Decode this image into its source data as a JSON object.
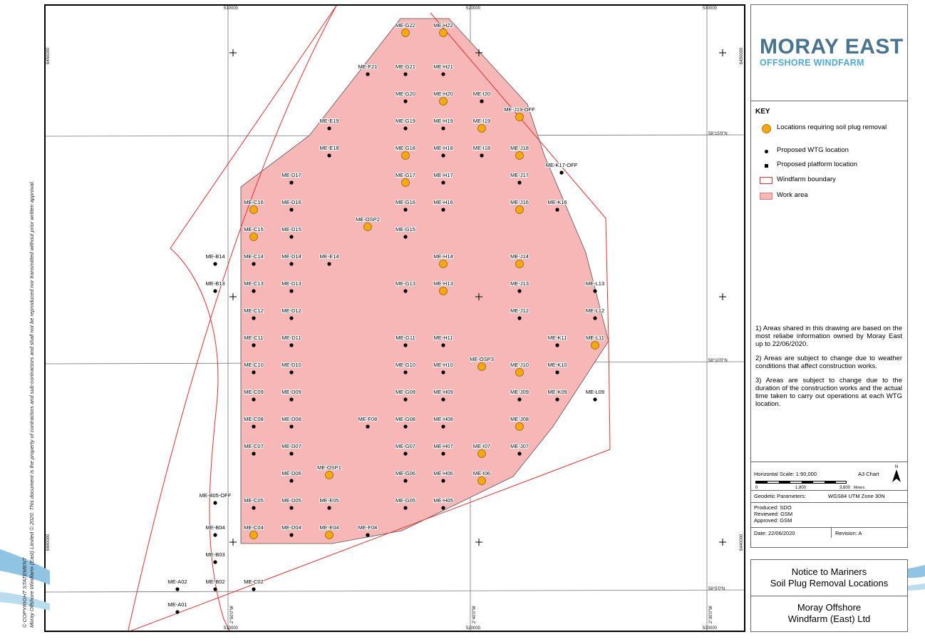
{
  "map": {
    "copyright_line1": "© COPYRIGHT STATEMENT",
    "copyright_line2": "Moray Offshore Windfarm (East) Limited © 2020. This document is the property of contractors and sub-contractors and shall not be reproduced nor transmitted without prior written approval.",
    "easting_labels": [
      "510000",
      "520000",
      "530000"
    ],
    "northing_labels": [
      "6450000",
      "6440000"
    ],
    "lat_labels": [
      "58°15'0\"N",
      "58°10'0\"N",
      "58°5'0\"N"
    ],
    "lon_labels": [
      "2°50'0\"W",
      "2°40'0\"W",
      "2°30'0\"W"
    ],
    "locations": [
      {
        "id": "ME-G22",
        "soil": true
      },
      {
        "id": "ME-H22",
        "soil": true
      },
      {
        "id": "ME-F21",
        "soil": false
      },
      {
        "id": "ME-G21",
        "soil": false
      },
      {
        "id": "ME-H21",
        "soil": false
      },
      {
        "id": "ME-G20",
        "soil": false
      },
      {
        "id": "ME-H20",
        "soil": true
      },
      {
        "id": "ME-I20",
        "soil": false
      },
      {
        "id": "ME-E19",
        "soil": false
      },
      {
        "id": "ME-G19",
        "soil": false
      },
      {
        "id": "ME-H19",
        "soil": false
      },
      {
        "id": "ME-I19",
        "soil": true
      },
      {
        "id": "ME-J19-OFF",
        "soil": true
      },
      {
        "id": "ME-E18",
        "soil": false
      },
      {
        "id": "ME-G18",
        "soil": true
      },
      {
        "id": "ME-H18",
        "soil": false
      },
      {
        "id": "ME-I18",
        "soil": false
      },
      {
        "id": "ME-J18",
        "soil": true
      },
      {
        "id": "ME-D17",
        "soil": false
      },
      {
        "id": "ME-G17",
        "soil": true
      },
      {
        "id": "ME-H17",
        "soil": false
      },
      {
        "id": "ME-J17",
        "soil": false
      },
      {
        "id": "ME-K17-OFF",
        "soil": false
      },
      {
        "id": "ME-C16",
        "soil": true
      },
      {
        "id": "ME-D16",
        "soil": false
      },
      {
        "id": "ME-G16",
        "soil": false
      },
      {
        "id": "ME-H16",
        "soil": false
      },
      {
        "id": "ME-J16",
        "soil": true
      },
      {
        "id": "ME-K16",
        "soil": false
      },
      {
        "id": "ME-C15",
        "soil": true
      },
      {
        "id": "ME-D15",
        "soil": false
      },
      {
        "id": "ME-OSP2",
        "soil": true
      },
      {
        "id": "ME-G15",
        "soil": false
      },
      {
        "id": "ME-B14",
        "soil": false
      },
      {
        "id": "ME-C14",
        "soil": false
      },
      {
        "id": "ME-D14",
        "soil": false
      },
      {
        "id": "ME-E14",
        "soil": false
      },
      {
        "id": "ME-H14",
        "soil": true
      },
      {
        "id": "ME-J14",
        "soil": true
      },
      {
        "id": "ME-B13",
        "soil": false
      },
      {
        "id": "ME-C13",
        "soil": false
      },
      {
        "id": "ME-D13",
        "soil": false
      },
      {
        "id": "ME-G13",
        "soil": false
      },
      {
        "id": "ME-H13",
        "soil": true
      },
      {
        "id": "ME-J13",
        "soil": false
      },
      {
        "id": "ME-L13",
        "soil": false
      },
      {
        "id": "ME-C12",
        "soil": false
      },
      {
        "id": "ME-D12",
        "soil": false
      },
      {
        "id": "ME-J12",
        "soil": false
      },
      {
        "id": "ME-L12",
        "soil": false
      },
      {
        "id": "ME-C11",
        "soil": false
      },
      {
        "id": "ME-D11",
        "soil": false
      },
      {
        "id": "ME-G11",
        "soil": false
      },
      {
        "id": "ME-H11",
        "soil": false
      },
      {
        "id": "ME-K11",
        "soil": false
      },
      {
        "id": "ME-L11",
        "soil": true
      },
      {
        "id": "ME-C10",
        "soil": false
      },
      {
        "id": "ME-D10",
        "soil": false
      },
      {
        "id": "ME-G10",
        "soil": false
      },
      {
        "id": "ME-H10",
        "soil": false
      },
      {
        "id": "ME-OSP3",
        "soil": true
      },
      {
        "id": "ME-J10",
        "soil": true
      },
      {
        "id": "ME-K10",
        "soil": false
      },
      {
        "id": "ME-C09",
        "soil": false
      },
      {
        "id": "ME-D09",
        "soil": false
      },
      {
        "id": "ME-G09",
        "soil": false
      },
      {
        "id": "ME-H09",
        "soil": false
      },
      {
        "id": "ME-J09",
        "soil": false
      },
      {
        "id": "ME-K09",
        "soil": false
      },
      {
        "id": "ME-L09",
        "soil": false
      },
      {
        "id": "ME-C08",
        "soil": false
      },
      {
        "id": "ME-D08",
        "soil": false
      },
      {
        "id": "ME-F08",
        "soil": false
      },
      {
        "id": "ME-G08",
        "soil": false
      },
      {
        "id": "ME-H08",
        "soil": false
      },
      {
        "id": "ME-J08",
        "soil": true
      },
      {
        "id": "ME-C07",
        "soil": false
      },
      {
        "id": "ME-D07",
        "soil": false
      },
      {
        "id": "ME-G07",
        "soil": false
      },
      {
        "id": "ME-H07",
        "soil": false
      },
      {
        "id": "ME-I07",
        "soil": true
      },
      {
        "id": "ME-J07",
        "soil": false
      },
      {
        "id": "ME-D06",
        "soil": false
      },
      {
        "id": "ME-OSP1",
        "soil": true
      },
      {
        "id": "ME-G06",
        "soil": false
      },
      {
        "id": "ME-H06",
        "soil": false
      },
      {
        "id": "ME-I06",
        "soil": true
      },
      {
        "id": "ME-B05-OFF",
        "soil": false
      },
      {
        "id": "ME-C05",
        "soil": false
      },
      {
        "id": "ME-D05",
        "soil": false
      },
      {
        "id": "ME-E05",
        "soil": false
      },
      {
        "id": "ME-G05",
        "soil": false
      },
      {
        "id": "ME-H05",
        "soil": false
      },
      {
        "id": "ME-B04",
        "soil": false
      },
      {
        "id": "ME-C04",
        "soil": true
      },
      {
        "id": "ME-D04",
        "soil": false
      },
      {
        "id": "ME-E04",
        "soil": true
      },
      {
        "id": "ME-F04",
        "soil": false
      },
      {
        "id": "ME-B03",
        "soil": false
      },
      {
        "id": "ME-A02",
        "soil": false
      },
      {
        "id": "ME-B02",
        "soil": false
      },
      {
        "id": "ME-C02",
        "soil": false
      },
      {
        "id": "ME-A01",
        "soil": false
      }
    ]
  },
  "logo": {
    "main": "MORAY EAST",
    "sub": "OFFSHORE WINDFARM"
  },
  "key": {
    "title": "KEY",
    "items": [
      "Locations requiring soil plug removal",
      "Proposed WTG location",
      "Proposed platform location",
      "Windfarm boundary",
      "Work area"
    ]
  },
  "notes": [
    "1) Areas shared in this drawing are based on the most reliabe information owned by Moray East up to 22/06/2020.",
    "2) Areas are subject to change due to weather conditions that affect construction works.",
    "3) Areas are subject to change due to the duration of the construction works and the actual time taken to carry out operations at each WTG location."
  ],
  "scale": {
    "horizontal": "Horizontal Scale:  1:90,000",
    "paper": "A3 Chart",
    "nums": [
      "0",
      "1,800",
      "3,600"
    ],
    "units": "Meters",
    "north": "N"
  },
  "meta": {
    "geodetic_label": "Geodetic Parameters:",
    "geodetic_value": "WGS84 UTM Zone 30N",
    "produced": "Produced: SDO",
    "reviewed": "Reviewed: GSM",
    "approved": "Approved: GSM",
    "date": "Date: 22/06/2020",
    "revision": "Revision: A"
  },
  "title": {
    "line1": "Notice to Mariners",
    "line2": "Soil Plug Removal Locations",
    "line3": "Moray Offshore",
    "line4": "Windfarm (East) Ltd"
  },
  "colors": {
    "soil_marker": "#f6a90f",
    "work_area": "#f7b7b7",
    "boundary": "#e03030",
    "logo_main": "#4a7390",
    "logo_sub": "#4fa9d6"
  }
}
